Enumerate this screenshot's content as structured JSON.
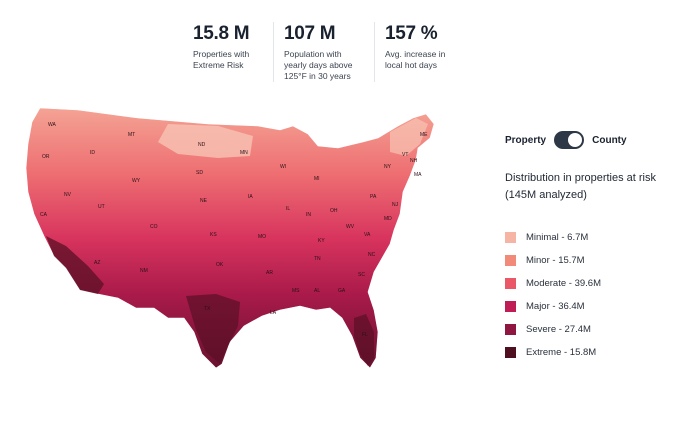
{
  "stats": [
    {
      "value": "15.8 M",
      "label": "Properties with Extreme Risk"
    },
    {
      "value": "107 M",
      "label": "Population with yearly days above 125°F in 30 years"
    },
    {
      "value": "157 %",
      "label": "Avg. increase in local hot days"
    }
  ],
  "toggle": {
    "left_label": "Property",
    "right_label": "County",
    "selected": "County"
  },
  "legend": {
    "title": "Distribution in properties at risk (145M analyzed)",
    "items": [
      {
        "label": "Minimal - 6.7M",
        "color": "#f6b4a4"
      },
      {
        "label": "Minor - 15.7M",
        "color": "#f28a7a"
      },
      {
        "label": "Moderate - 39.6M",
        "color": "#ea5766"
      },
      {
        "label": "Major - 36.4M",
        "color": "#c01c56"
      },
      {
        "label": "Severe - 27.4M",
        "color": "#8f1640"
      },
      {
        "label": "Extreme - 15.8M",
        "color": "#4e0f20"
      }
    ]
  },
  "map": {
    "state_labels": [
      "WA",
      "OR",
      "CA",
      "NV",
      "ID",
      "MT",
      "WY",
      "UT",
      "AZ",
      "CO",
      "NM",
      "ND",
      "SD",
      "NE",
      "KS",
      "OK",
      "TX",
      "MN",
      "IA",
      "MO",
      "AR",
      "LA",
      "WI",
      "IL",
      "MS",
      "MI",
      "IN",
      "KY",
      "TN",
      "AL",
      "GA",
      "FL",
      "OH",
      "WV",
      "VA",
      "NC",
      "SC",
      "PA",
      "NY",
      "VT",
      "NH",
      "ME",
      "MA",
      "NJ",
      "MD"
    ]
  }
}
